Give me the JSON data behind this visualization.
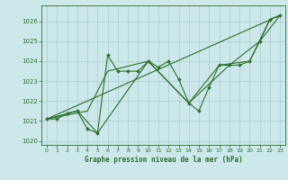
{
  "bg_color": "#cce8ea",
  "grid_color": "#aacccc",
  "line_color": "#2d6e2d",
  "marker_color": "#2d6e2d",
  "xlabel": "Graphe pression niveau de la mer (hPa)",
  "ylim": [
    1019.8,
    1026.8
  ],
  "xlim": [
    -0.5,
    23.5
  ],
  "yticks": [
    1020,
    1021,
    1022,
    1023,
    1024,
    1025,
    1026
  ],
  "xticks": [
    0,
    1,
    2,
    3,
    4,
    5,
    6,
    7,
    8,
    9,
    10,
    11,
    12,
    13,
    14,
    15,
    16,
    17,
    18,
    19,
    20,
    21,
    22,
    23
  ],
  "series1_x": [
    0,
    1,
    2,
    3,
    4,
    5,
    6,
    7,
    8,
    9,
    10,
    11,
    12,
    13,
    14,
    15,
    16,
    17,
    18,
    19,
    20,
    21,
    22,
    23
  ],
  "series1_y": [
    1021.1,
    1021.1,
    1021.4,
    1021.5,
    1020.6,
    1020.4,
    1024.3,
    1023.5,
    1023.5,
    1023.5,
    1024.0,
    1023.7,
    1024.0,
    1023.1,
    1021.9,
    1021.5,
    1022.7,
    1023.8,
    1023.8,
    1023.8,
    1024.0,
    1025.0,
    1026.1,
    1026.3
  ],
  "series2_x": [
    0,
    23
  ],
  "series2_y": [
    1021.1,
    1026.3
  ],
  "series3_x": [
    0,
    4,
    6,
    10,
    14,
    17,
    20,
    22,
    23
  ],
  "series3_y": [
    1021.1,
    1021.5,
    1023.5,
    1024.0,
    1021.9,
    1023.8,
    1024.0,
    1026.1,
    1026.3
  ],
  "series4_x": [
    0,
    3,
    5,
    10,
    14,
    18,
    21,
    23
  ],
  "series4_y": [
    1021.1,
    1021.5,
    1020.4,
    1024.0,
    1021.9,
    1023.8,
    1025.0,
    1026.3
  ]
}
